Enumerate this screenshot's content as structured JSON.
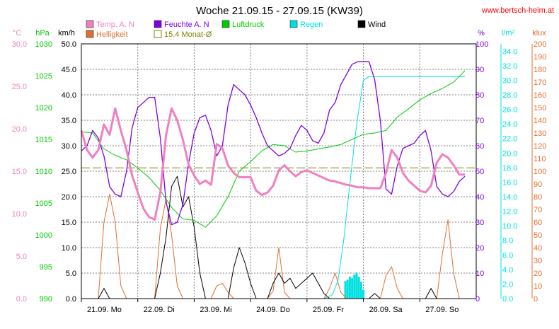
{
  "chart_data": {
    "type": "line",
    "title": "Woche 21.09.15 - 27.09.15 (KW39)",
    "source": "www.bertsch-heim.at",
    "grid": true,
    "x_labels": [
      "21.09. Mo",
      "22.09. Di",
      "23.09. Mi",
      "24.09. Do",
      "25.09. Fr",
      "26.09. Sa",
      "27.09. So"
    ],
    "x_range_days": [
      0,
      7
    ],
    "legend": [
      {
        "key": "temp",
        "label": "Temp. A. N",
        "color": "#f080c0"
      },
      {
        "key": "hum",
        "label": "Feuchte A. N",
        "color": "#8000e0"
      },
      {
        "key": "press",
        "label": "Luftdruck",
        "color": "#00cc00"
      },
      {
        "key": "rain",
        "label": "Regen",
        "color": "#00e0e0"
      },
      {
        "key": "wind",
        "label": "Wind",
        "color": "#000000"
      },
      {
        "key": "light",
        "label": "Helligkeit",
        "color": "#e07030"
      },
      {
        "key": "avg",
        "label": "15.4 Monat-Ø",
        "color": "#808000"
      }
    ],
    "axes": {
      "temp": {
        "unit": "°C",
        "min": 0,
        "max": 30,
        "ticks": [
          "30.0",
          "25.0",
          "20.0",
          "15.0",
          "10.0",
          "5.0",
          "0.0"
        ],
        "color": "#f080c0"
      },
      "press": {
        "unit": "hPa",
        "min": 990,
        "max": 1030,
        "ticks": [
          "1030",
          "1025",
          "1020",
          "1015",
          "1010",
          "1005",
          "1000",
          "995",
          "990"
        ],
        "color": "#00cc00"
      },
      "wind": {
        "unit": "km/h",
        "min": 0,
        "max": 50,
        "ticks": [
          "50.0",
          "45.0",
          "40.0",
          "35.0",
          "30.0",
          "25.0",
          "20.0",
          "15.0",
          "10.0",
          "5.0",
          "0.0"
        ],
        "color": "#000000"
      },
      "hum": {
        "unit": "%",
        "min": 0,
        "max": 100,
        "ticks": [
          "100",
          "90",
          "80",
          "70",
          "60",
          "50",
          "40",
          "30",
          "20",
          "10",
          "0"
        ],
        "color": "#8000e0"
      },
      "rain": {
        "unit": "l/m²",
        "min": 0,
        "max": 35,
        "ticks": [
          "34.0",
          "32.0",
          "30.0",
          "28.0",
          "26.0",
          "24.0",
          "22.0",
          "20.0",
          "18.0",
          "16.0",
          "14.0",
          "12.0",
          "10.0",
          "8.0",
          "6.0",
          "4.0",
          "2.0",
          "0.0"
        ],
        "color": "#00e0e0"
      },
      "light": {
        "unit": "klux",
        "min": 0,
        "max": 200,
        "ticks": [
          "200",
          "190",
          "180",
          "170",
          "160",
          "150",
          "140",
          "130",
          "120",
          "110",
          "100",
          "90",
          "80",
          "70",
          "60",
          "50",
          "40",
          "30",
          "20",
          "10",
          "0"
        ],
        "color": "#e07030"
      }
    },
    "monthly_avg_temp": 15.4,
    "series": {
      "temp": {
        "unit": "°C",
        "points": [
          [
            0,
            19.8
          ],
          [
            0.1,
            17.5
          ],
          [
            0.2,
            16.6
          ],
          [
            0.3,
            17.5
          ],
          [
            0.4,
            20.5
          ],
          [
            0.5,
            19.3
          ],
          [
            0.6,
            22.4
          ],
          [
            0.7,
            19.8
          ],
          [
            0.8,
            17.5
          ],
          [
            0.9,
            14.5
          ],
          [
            1.0,
            12.5
          ],
          [
            1.1,
            10.6
          ],
          [
            1.2,
            9.6
          ],
          [
            1.3,
            9.3
          ],
          [
            1.4,
            12.5
          ],
          [
            1.5,
            19.2
          ],
          [
            1.6,
            22.4
          ],
          [
            1.7,
            21.0
          ],
          [
            1.8,
            18.7
          ],
          [
            1.9,
            15.8
          ],
          [
            2.0,
            14.5
          ],
          [
            2.1,
            13.5
          ],
          [
            2.2,
            13.9
          ],
          [
            2.3,
            13.4
          ],
          [
            2.4,
            18.2
          ],
          [
            2.5,
            17.7
          ],
          [
            2.6,
            15.7
          ],
          [
            2.7,
            14.8
          ],
          [
            2.8,
            14.3
          ],
          [
            2.9,
            14.3
          ],
          [
            3.0,
            14.3
          ],
          [
            3.1,
            12.7
          ],
          [
            3.2,
            12.2
          ],
          [
            3.3,
            12.5
          ],
          [
            3.4,
            13.3
          ],
          [
            3.5,
            15.1
          ],
          [
            3.6,
            15.7
          ],
          [
            3.7,
            15.0
          ],
          [
            3.8,
            14.4
          ],
          [
            3.9,
            14.9
          ],
          [
            4.0,
            15.1
          ],
          [
            4.1,
            14.8
          ],
          [
            4.2,
            14.5
          ],
          [
            4.3,
            14.2
          ],
          [
            4.4,
            13.9
          ],
          [
            4.5,
            13.8
          ],
          [
            4.6,
            13.6
          ],
          [
            4.7,
            13.4
          ],
          [
            4.8,
            13.3
          ],
          [
            4.9,
            13.1
          ],
          [
            5.0,
            13.1
          ],
          [
            5.1,
            13.0
          ],
          [
            5.2,
            13.0
          ],
          [
            5.3,
            13.0
          ],
          [
            5.4,
            14.8
          ],
          [
            5.5,
            17.5
          ],
          [
            5.6,
            16.6
          ],
          [
            5.7,
            14.8
          ],
          [
            5.8,
            13.9
          ],
          [
            5.9,
            13.3
          ],
          [
            6.0,
            12.7
          ],
          [
            6.1,
            12.5
          ],
          [
            6.2,
            13.3
          ],
          [
            6.3,
            16.0
          ],
          [
            6.4,
            17.0
          ],
          [
            6.5,
            16.6
          ],
          [
            6.6,
            15.7
          ],
          [
            6.7,
            14.6
          ],
          [
            6.8,
            14.6
          ]
        ]
      },
      "hum": {
        "unit": "%",
        "points": [
          [
            0,
            58
          ],
          [
            0.1,
            60
          ],
          [
            0.2,
            66
          ],
          [
            0.3,
            63
          ],
          [
            0.4,
            56
          ],
          [
            0.5,
            44
          ],
          [
            0.6,
            41
          ],
          [
            0.7,
            40
          ],
          [
            0.8,
            50
          ],
          [
            0.9,
            67
          ],
          [
            1.0,
            75
          ],
          [
            1.1,
            77
          ],
          [
            1.2,
            79
          ],
          [
            1.3,
            79
          ],
          [
            1.4,
            63
          ],
          [
            1.5,
            38
          ],
          [
            1.6,
            29
          ],
          [
            1.7,
            30
          ],
          [
            1.8,
            37
          ],
          [
            1.9,
            53
          ],
          [
            2.0,
            65
          ],
          [
            2.1,
            71
          ],
          [
            2.2,
            72
          ],
          [
            2.3,
            66
          ],
          [
            2.4,
            56
          ],
          [
            2.5,
            60
          ],
          [
            2.6,
            76
          ],
          [
            2.7,
            84
          ],
          [
            2.8,
            82
          ],
          [
            2.9,
            80
          ],
          [
            3.0,
            76
          ],
          [
            3.1,
            71
          ],
          [
            3.2,
            65
          ],
          [
            3.3,
            60
          ],
          [
            3.4,
            58
          ],
          [
            3.5,
            56
          ],
          [
            3.6,
            57
          ],
          [
            3.7,
            59
          ],
          [
            3.8,
            64
          ],
          [
            3.9,
            68
          ],
          [
            4.0,
            66
          ],
          [
            4.1,
            62
          ],
          [
            4.2,
            61
          ],
          [
            4.3,
            65
          ],
          [
            4.4,
            74
          ],
          [
            4.5,
            77
          ],
          [
            4.6,
            84
          ],
          [
            4.7,
            88
          ],
          [
            4.8,
            92
          ],
          [
            4.9,
            93
          ],
          [
            5.0,
            93
          ],
          [
            5.1,
            93
          ],
          [
            5.2,
            86
          ],
          [
            5.3,
            70
          ],
          [
            5.4,
            43
          ],
          [
            5.5,
            41
          ],
          [
            5.6,
            52
          ],
          [
            5.7,
            59
          ],
          [
            5.8,
            60
          ],
          [
            5.9,
            61
          ],
          [
            6.0,
            64
          ],
          [
            6.1,
            66
          ],
          [
            6.2,
            58
          ],
          [
            6.3,
            44
          ],
          [
            6.4,
            41
          ],
          [
            6.5,
            40
          ],
          [
            6.6,
            42
          ],
          [
            6.7,
            46
          ],
          [
            6.8,
            48
          ]
        ]
      },
      "press": {
        "unit": "hPa",
        "points": [
          [
            0,
            1016.2
          ],
          [
            0.2,
            1016.0
          ],
          [
            0.4,
            1013.5
          ],
          [
            0.6,
            1012.5
          ],
          [
            0.8,
            1011.8
          ],
          [
            1.0,
            1010.5
          ],
          [
            1.2,
            1009.0
          ],
          [
            1.4,
            1007.0
          ],
          [
            1.6,
            1004.3
          ],
          [
            1.8,
            1002.5
          ],
          [
            2.0,
            1002.3
          ],
          [
            2.2,
            1001.2
          ],
          [
            2.4,
            1003.0
          ],
          [
            2.6,
            1006.0
          ],
          [
            2.8,
            1010.0
          ],
          [
            3.0,
            1011.5
          ],
          [
            3.2,
            1013.2
          ],
          [
            3.4,
            1014.2
          ],
          [
            3.6,
            1014.0
          ],
          [
            3.8,
            1013.0
          ],
          [
            4.0,
            1013.2
          ],
          [
            4.2,
            1013.5
          ],
          [
            4.4,
            1013.8
          ],
          [
            4.6,
            1014.2
          ],
          [
            4.8,
            1015.0
          ],
          [
            5.0,
            1015.8
          ],
          [
            5.2,
            1016.0
          ],
          [
            5.4,
            1016.4
          ],
          [
            5.6,
            1018.5
          ],
          [
            5.8,
            1019.8
          ],
          [
            6.0,
            1021.2
          ],
          [
            6.2,
            1022.2
          ],
          [
            6.4,
            1023.0
          ],
          [
            6.6,
            1024.0
          ],
          [
            6.8,
            1025.8
          ]
        ]
      },
      "rain": {
        "unit": "l/m²",
        "points": [
          [
            0,
            0
          ],
          [
            4.3,
            0
          ],
          [
            4.45,
            0.5
          ],
          [
            4.55,
            2.5
          ],
          [
            4.65,
            8
          ],
          [
            4.75,
            15
          ],
          [
            4.85,
            22
          ],
          [
            4.9,
            25
          ],
          [
            5.0,
            30
          ],
          [
            5.1,
            30.5
          ],
          [
            5.3,
            30.5
          ],
          [
            6.0,
            30.5
          ],
          [
            6.8,
            30.5
          ]
        ]
      },
      "wind": {
        "unit": "km/h",
        "points": [
          [
            0,
            0
          ],
          [
            0.3,
            0
          ],
          [
            0.4,
            2
          ],
          [
            0.5,
            0
          ],
          [
            1.3,
            0
          ],
          [
            1.4,
            5
          ],
          [
            1.5,
            12
          ],
          [
            1.6,
            22
          ],
          [
            1.7,
            24
          ],
          [
            1.8,
            18
          ],
          [
            1.9,
            20
          ],
          [
            2.0,
            14
          ],
          [
            2.1,
            5
          ],
          [
            2.2,
            0
          ],
          [
            2.6,
            0
          ],
          [
            2.7,
            6
          ],
          [
            2.8,
            10
          ],
          [
            2.9,
            7
          ],
          [
            3.0,
            3
          ],
          [
            3.1,
            0
          ],
          [
            3.3,
            0
          ],
          [
            3.4,
            3
          ],
          [
            3.5,
            5
          ],
          [
            3.6,
            3
          ],
          [
            3.7,
            4
          ],
          [
            3.8,
            2
          ],
          [
            3.9,
            3
          ],
          [
            4.0,
            4
          ],
          [
            4.1,
            5
          ],
          [
            4.2,
            3
          ],
          [
            4.3,
            1
          ],
          [
            4.4,
            0
          ],
          [
            5.1,
            0
          ],
          [
            5.2,
            1
          ],
          [
            5.3,
            0
          ],
          [
            6.1,
            0
          ],
          [
            6.2,
            2
          ],
          [
            6.3,
            0
          ],
          [
            6.8,
            0
          ]
        ]
      },
      "light": {
        "unit": "klux",
        "points": [
          [
            0,
            0
          ],
          [
            0.3,
            0
          ],
          [
            0.4,
            60
          ],
          [
            0.5,
            82
          ],
          [
            0.6,
            60
          ],
          [
            0.7,
            10
          ],
          [
            0.8,
            0
          ],
          [
            1.3,
            0
          ],
          [
            1.4,
            55
          ],
          [
            1.5,
            78
          ],
          [
            1.6,
            50
          ],
          [
            1.7,
            10
          ],
          [
            1.8,
            0
          ],
          [
            2.3,
            0
          ],
          [
            2.4,
            10
          ],
          [
            2.5,
            12
          ],
          [
            2.6,
            5
          ],
          [
            2.7,
            0
          ],
          [
            3.3,
            0
          ],
          [
            3.4,
            6
          ],
          [
            3.5,
            40
          ],
          [
            3.6,
            5
          ],
          [
            3.7,
            0
          ],
          [
            4.3,
            0
          ],
          [
            4.4,
            8
          ],
          [
            4.5,
            20
          ],
          [
            4.6,
            5
          ],
          [
            4.7,
            0
          ],
          [
            5.3,
            0
          ],
          [
            5.4,
            18
          ],
          [
            5.5,
            25
          ],
          [
            5.6,
            8
          ],
          [
            5.7,
            0
          ],
          [
            6.3,
            0
          ],
          [
            6.4,
            35
          ],
          [
            6.5,
            62
          ],
          [
            6.6,
            20
          ],
          [
            6.7,
            0
          ],
          [
            6.8,
            0
          ]
        ]
      },
      "rain_hourly": {
        "unit": "l/m²",
        "points": [
          [
            4.68,
            2.4
          ],
          [
            4.72,
            2.6
          ],
          [
            4.76,
            3.0
          ],
          [
            4.8,
            2.8
          ],
          [
            4.84,
            3.3
          ],
          [
            4.88,
            3.6
          ],
          [
            4.92,
            3.0
          ],
          [
            4.96,
            2.3
          ],
          [
            5.0,
            1.2
          ]
        ]
      }
    }
  }
}
